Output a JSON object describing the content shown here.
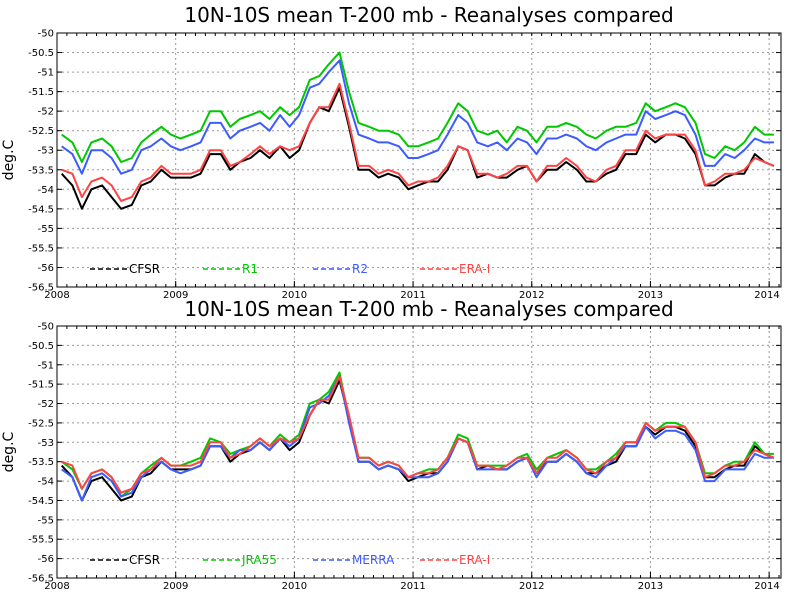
{
  "chart_data": [
    {
      "type": "line",
      "title": "10N-10S mean T-200 mb - Reanalyses compared",
      "ylabel": "deg.C",
      "xlabel": "",
      "xlim": [
        2008.0,
        2014.1
      ],
      "ylim": [
        -56.5,
        -50
      ],
      "grid": true,
      "legend_position": "bottom",
      "x_ticks": [
        2008,
        2009,
        2010,
        2011,
        2012,
        2013,
        2014
      ],
      "y_ticks": [
        "-50",
        "-50.5",
        "-51",
        "-51.5",
        "-52",
        "-52.5",
        "-53",
        "-53.5",
        "-54",
        "-54.5",
        "-55",
        "-55.5",
        "-56",
        "-56.5"
      ],
      "x": [
        2008.04,
        2008.13,
        2008.21,
        2008.29,
        2008.38,
        2008.46,
        2008.54,
        2008.63,
        2008.71,
        2008.79,
        2008.88,
        2008.96,
        2009.04,
        2009.13,
        2009.21,
        2009.29,
        2009.38,
        2009.46,
        2009.54,
        2009.63,
        2009.71,
        2009.79,
        2009.88,
        2009.96,
        2010.04,
        2010.13,
        2010.21,
        2010.29,
        2010.38,
        2010.46,
        2010.54,
        2010.63,
        2010.71,
        2010.79,
        2010.88,
        2010.96,
        2011.04,
        2011.13,
        2011.21,
        2011.29,
        2011.38,
        2011.46,
        2011.54,
        2011.63,
        2011.71,
        2011.79,
        2011.88,
        2011.96,
        2012.04,
        2012.13,
        2012.21,
        2012.29,
        2012.38,
        2012.46,
        2012.54,
        2012.63,
        2012.71,
        2012.79,
        2012.88,
        2012.96,
        2013.04,
        2013.13,
        2013.21,
        2013.29,
        2013.38,
        2013.46,
        2013.54,
        2013.63,
        2013.71,
        2013.79,
        2013.88,
        2013.96,
        2014.04
      ],
      "series": [
        {
          "name": "CFSR",
          "color": "#000000",
          "values": [
            -53.6,
            -53.9,
            -54.5,
            -54.0,
            -53.9,
            -54.2,
            -54.5,
            -54.4,
            -53.9,
            -53.8,
            -53.5,
            -53.7,
            -53.7,
            -53.7,
            -53.6,
            -53.1,
            -53.1,
            -53.5,
            -53.3,
            -53.2,
            -53.0,
            -53.2,
            -52.9,
            -53.2,
            -53.0,
            -52.3,
            -51.9,
            -52.0,
            -51.4,
            -52.4,
            -53.5,
            -53.5,
            -53.7,
            -53.6,
            -53.7,
            -54.0,
            -53.9,
            -53.8,
            -53.8,
            -53.5,
            -52.9,
            -53.0,
            -53.7,
            -53.6,
            -53.7,
            -53.7,
            -53.5,
            -53.4,
            -53.8,
            -53.5,
            -53.5,
            -53.3,
            -53.5,
            -53.8,
            -53.8,
            -53.6,
            -53.5,
            -53.1,
            -53.1,
            -52.6,
            -52.8,
            -52.6,
            -52.6,
            -52.7,
            -53.1,
            -53.9,
            -53.9,
            -53.7,
            -53.6,
            -53.6,
            -53.1,
            -53.3,
            -53.4
          ]
        },
        {
          "name": "R1",
          "color": "#00c800",
          "values": [
            -52.6,
            -52.8,
            -53.3,
            -52.8,
            -52.7,
            -52.9,
            -53.3,
            -53.2,
            -52.8,
            -52.6,
            -52.4,
            -52.6,
            -52.7,
            -52.6,
            -52.5,
            -52.0,
            -52.0,
            -52.4,
            -52.2,
            -52.1,
            -52.0,
            -52.2,
            -51.9,
            -52.1,
            -51.9,
            -51.2,
            -51.1,
            -50.8,
            -50.5,
            -51.5,
            -52.3,
            -52.4,
            -52.5,
            -52.5,
            -52.6,
            -52.9,
            -52.9,
            -52.8,
            -52.7,
            -52.3,
            -51.8,
            -52.0,
            -52.5,
            -52.6,
            -52.5,
            -52.8,
            -52.4,
            -52.5,
            -52.8,
            -52.4,
            -52.4,
            -52.3,
            -52.4,
            -52.6,
            -52.7,
            -52.5,
            -52.4,
            -52.4,
            -52.3,
            -51.8,
            -52.0,
            -51.9,
            -51.8,
            -51.9,
            -52.3,
            -53.1,
            -53.2,
            -52.9,
            -53.0,
            -52.8,
            -52.4,
            -52.6,
            -52.6
          ]
        },
        {
          "name": "R2",
          "color": "#3c5cff",
          "values": [
            -52.9,
            -53.1,
            -53.6,
            -53.0,
            -53.0,
            -53.2,
            -53.6,
            -53.5,
            -53.0,
            -52.9,
            -52.7,
            -52.9,
            -53.0,
            -52.9,
            -52.8,
            -52.3,
            -52.3,
            -52.7,
            -52.5,
            -52.4,
            -52.3,
            -52.5,
            -52.1,
            -52.4,
            -52.1,
            -51.4,
            -51.3,
            -51.0,
            -50.7,
            -51.8,
            -52.6,
            -52.7,
            -52.8,
            -52.8,
            -52.9,
            -53.2,
            -53.2,
            -53.1,
            -53.0,
            -52.6,
            -52.1,
            -52.3,
            -52.8,
            -52.9,
            -52.8,
            -53.0,
            -52.7,
            -52.8,
            -53.1,
            -52.7,
            -52.7,
            -52.6,
            -52.7,
            -52.9,
            -53.0,
            -52.8,
            -52.7,
            -52.6,
            -52.6,
            -52.0,
            -52.2,
            -52.1,
            -52.0,
            -52.1,
            -52.6,
            -53.4,
            -53.4,
            -53.1,
            -53.2,
            -53.0,
            -52.7,
            -52.8,
            -52.8
          ]
        },
        {
          "name": "ERA-I",
          "color": "#ff4444",
          "values": [
            -53.5,
            -53.6,
            -54.2,
            -53.8,
            -53.7,
            -53.9,
            -54.3,
            -54.2,
            -53.8,
            -53.7,
            -53.4,
            -53.6,
            -53.6,
            -53.6,
            -53.5,
            -53.0,
            -53.0,
            -53.4,
            -53.3,
            -53.1,
            -52.9,
            -53.1,
            -52.9,
            -53.0,
            -52.9,
            -52.3,
            -51.9,
            -51.9,
            -51.3,
            -52.3,
            -53.4,
            -53.4,
            -53.6,
            -53.5,
            -53.6,
            -53.9,
            -53.8,
            -53.8,
            -53.7,
            -53.4,
            -52.9,
            -53.0,
            -53.6,
            -53.6,
            -53.7,
            -53.6,
            -53.4,
            -53.4,
            -53.8,
            -53.4,
            -53.4,
            -53.2,
            -53.4,
            -53.7,
            -53.8,
            -53.5,
            -53.4,
            -53.0,
            -53.0,
            -52.5,
            -52.7,
            -52.6,
            -52.6,
            -52.6,
            -53.0,
            -53.9,
            -53.8,
            -53.6,
            -53.6,
            -53.5,
            -53.2,
            -53.3,
            -53.4
          ]
        }
      ]
    },
    {
      "type": "line",
      "title": "10N-10S mean T-200 mb - Reanalyses compared",
      "ylabel": "deg.C",
      "xlabel": "",
      "xlim": [
        2008.0,
        2014.1
      ],
      "ylim": [
        -56.5,
        -50
      ],
      "grid": true,
      "legend_position": "bottom",
      "x_ticks": [
        2008,
        2009,
        2010,
        2011,
        2012,
        2013,
        2014
      ],
      "y_ticks": [
        "-50",
        "-50.5",
        "-51",
        "-51.5",
        "-52",
        "-52.5",
        "-53",
        "-53.5",
        "-54",
        "-54.5",
        "-55",
        "-55.5",
        "-56",
        "-56.5"
      ],
      "x": [
        2008.04,
        2008.13,
        2008.21,
        2008.29,
        2008.38,
        2008.46,
        2008.54,
        2008.63,
        2008.71,
        2008.79,
        2008.88,
        2008.96,
        2009.04,
        2009.13,
        2009.21,
        2009.29,
        2009.38,
        2009.46,
        2009.54,
        2009.63,
        2009.71,
        2009.79,
        2009.88,
        2009.96,
        2010.04,
        2010.13,
        2010.21,
        2010.29,
        2010.38,
        2010.46,
        2010.54,
        2010.63,
        2010.71,
        2010.79,
        2010.88,
        2010.96,
        2011.04,
        2011.13,
        2011.21,
        2011.29,
        2011.38,
        2011.46,
        2011.54,
        2011.63,
        2011.71,
        2011.79,
        2011.88,
        2011.96,
        2012.04,
        2012.13,
        2012.21,
        2012.29,
        2012.38,
        2012.46,
        2012.54,
        2012.63,
        2012.71,
        2012.79,
        2012.88,
        2012.96,
        2013.04,
        2013.13,
        2013.21,
        2013.29,
        2013.38,
        2013.46,
        2013.54,
        2013.63,
        2013.71,
        2013.79,
        2013.88,
        2013.96,
        2014.04
      ],
      "series": [
        {
          "name": "CFSR",
          "color": "#000000",
          "values": [
            -53.6,
            -53.9,
            -54.5,
            -54.0,
            -53.9,
            -54.2,
            -54.5,
            -54.4,
            -53.9,
            -53.8,
            -53.5,
            -53.7,
            -53.7,
            -53.7,
            -53.6,
            -53.1,
            -53.1,
            -53.5,
            -53.3,
            -53.2,
            -53.0,
            -53.2,
            -52.9,
            -53.2,
            -53.0,
            -52.3,
            -51.9,
            -52.0,
            -51.4,
            -52.4,
            -53.5,
            -53.5,
            -53.7,
            -53.6,
            -53.7,
            -54.0,
            -53.9,
            -53.8,
            -53.8,
            -53.5,
            -52.9,
            -53.0,
            -53.7,
            -53.6,
            -53.7,
            -53.7,
            -53.5,
            -53.4,
            -53.8,
            -53.5,
            -53.5,
            -53.3,
            -53.5,
            -53.8,
            -53.8,
            -53.6,
            -53.5,
            -53.1,
            -53.1,
            -52.6,
            -52.8,
            -52.6,
            -52.6,
            -52.7,
            -53.1,
            -53.9,
            -53.9,
            -53.7,
            -53.6,
            -53.6,
            -53.1,
            -53.3,
            -53.4
          ]
        },
        {
          "name": "JRA55",
          "color": "#00c800",
          "values": [
            -53.5,
            -53.7,
            -54.2,
            -53.8,
            -53.7,
            -53.9,
            -54.4,
            -54.2,
            -53.8,
            -53.6,
            -53.4,
            -53.6,
            -53.6,
            -53.5,
            -53.4,
            -52.9,
            -53.0,
            -53.3,
            -53.2,
            -53.1,
            -52.9,
            -53.1,
            -52.8,
            -53.0,
            -52.8,
            -52.0,
            -51.9,
            -51.7,
            -51.2,
            -52.4,
            -53.4,
            -53.4,
            -53.6,
            -53.5,
            -53.6,
            -53.9,
            -53.8,
            -53.7,
            -53.7,
            -53.4,
            -52.8,
            -52.9,
            -53.6,
            -53.6,
            -53.6,
            -53.6,
            -53.4,
            -53.3,
            -53.7,
            -53.4,
            -53.3,
            -53.2,
            -53.4,
            -53.7,
            -53.7,
            -53.5,
            -53.3,
            -53.0,
            -53.0,
            -52.5,
            -52.7,
            -52.5,
            -52.5,
            -52.6,
            -53.0,
            -53.8,
            -53.8,
            -53.6,
            -53.5,
            -53.5,
            -53.0,
            -53.3,
            -53.3
          ]
        },
        {
          "name": "MERRA",
          "color": "#3c5cff",
          "values": [
            -53.7,
            -53.9,
            -54.5,
            -53.9,
            -53.8,
            -54.0,
            -54.4,
            -54.3,
            -53.9,
            -53.7,
            -53.5,
            -53.7,
            -53.8,
            -53.7,
            -53.6,
            -53.1,
            -53.1,
            -53.4,
            -53.2,
            -53.2,
            -53.0,
            -53.2,
            -52.9,
            -53.1,
            -52.9,
            -52.1,
            -52.0,
            -51.8,
            -51.3,
            -52.5,
            -53.5,
            -53.5,
            -53.7,
            -53.6,
            -53.7,
            -53.9,
            -53.9,
            -53.9,
            -53.8,
            -53.5,
            -52.9,
            -53.0,
            -53.7,
            -53.7,
            -53.7,
            -53.7,
            -53.5,
            -53.4,
            -53.9,
            -53.5,
            -53.5,
            -53.3,
            -53.5,
            -53.8,
            -53.9,
            -53.6,
            -53.4,
            -53.1,
            -53.1,
            -52.6,
            -52.9,
            -52.7,
            -52.7,
            -52.8,
            -53.2,
            -54.0,
            -54.0,
            -53.7,
            -53.7,
            -53.7,
            -53.3,
            -53.4,
            -53.4
          ]
        },
        {
          "name": "ERA-I",
          "color": "#ff4444",
          "values": [
            -53.5,
            -53.6,
            -54.2,
            -53.8,
            -53.7,
            -53.9,
            -54.3,
            -54.2,
            -53.8,
            -53.7,
            -53.4,
            -53.6,
            -53.6,
            -53.6,
            -53.5,
            -53.0,
            -53.0,
            -53.4,
            -53.3,
            -53.1,
            -52.9,
            -53.1,
            -52.9,
            -53.0,
            -52.9,
            -52.3,
            -51.9,
            -51.9,
            -51.3,
            -52.3,
            -53.4,
            -53.4,
            -53.6,
            -53.5,
            -53.6,
            -53.9,
            -53.8,
            -53.8,
            -53.7,
            -53.4,
            -52.9,
            -53.0,
            -53.6,
            -53.6,
            -53.7,
            -53.6,
            -53.4,
            -53.4,
            -53.8,
            -53.4,
            -53.4,
            -53.2,
            -53.4,
            -53.7,
            -53.8,
            -53.5,
            -53.4,
            -53.0,
            -53.0,
            -52.5,
            -52.7,
            -52.6,
            -52.6,
            -52.6,
            -53.0,
            -53.9,
            -53.8,
            -53.6,
            -53.6,
            -53.5,
            -53.2,
            -53.3,
            -53.4
          ]
        }
      ]
    }
  ]
}
